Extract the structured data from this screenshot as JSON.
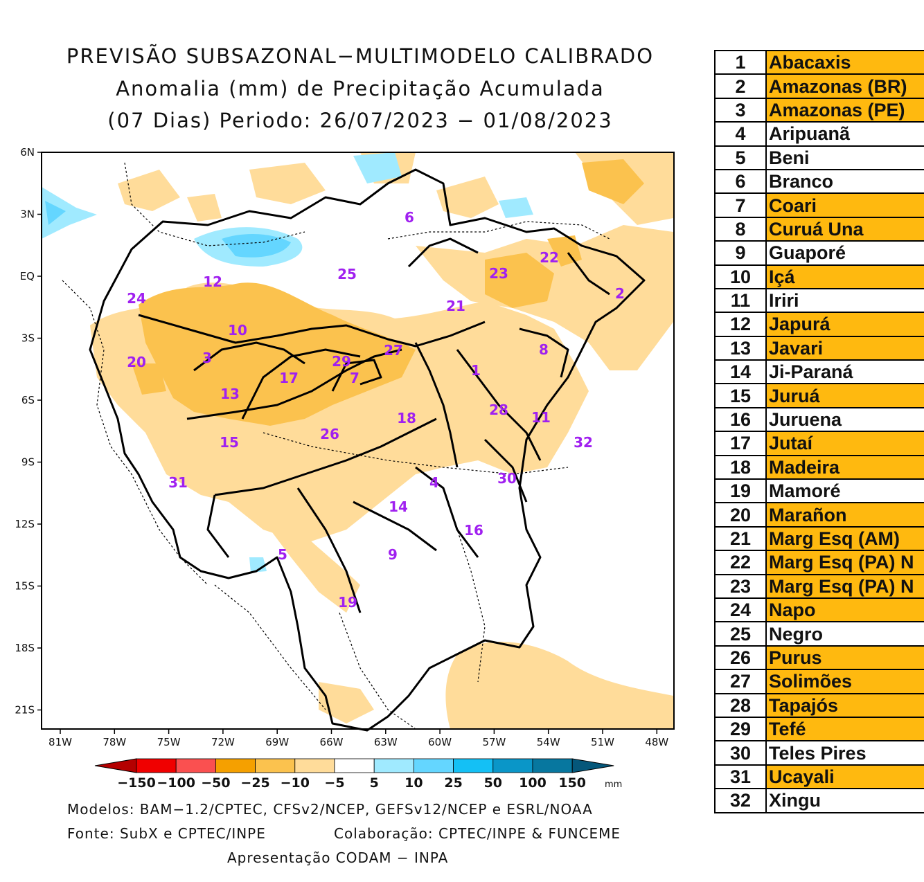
{
  "title": {
    "line1": "PREVISÃO SUBSAZONAL−MULTIMODELO CALIBRADO",
    "line2": "Anomalia (mm) de Precipitação Acumulada",
    "line3": "(07 Dias) Periodo: 26/07/2023 − 01/08/2023"
  },
  "map": {
    "lat_labels": [
      "6N",
      "3N",
      "EQ",
      "3S",
      "6S",
      "9S",
      "12S",
      "15S",
      "18S",
      "21S"
    ],
    "lon_labels": [
      "81W",
      "78W",
      "75W",
      "72W",
      "69W",
      "66W",
      "63W",
      "60W",
      "57W",
      "54W",
      "51W",
      "48W"
    ],
    "basin_numbers": [
      "1",
      "2",
      "3",
      "4",
      "5",
      "6",
      "7",
      "8",
      "9",
      "10",
      "11",
      "12",
      "13",
      "14",
      "15",
      "16",
      "17",
      "18",
      "19",
      "20",
      "21",
      "22",
      "23",
      "24",
      "25",
      "26",
      "27",
      "28",
      "29",
      "30",
      "31",
      "32"
    ],
    "label_color": "#A020F0"
  },
  "colorbar": {
    "ticks": [
      "−150",
      "−100",
      "−50",
      "−25",
      "−10",
      "−5",
      "5",
      "10",
      "25",
      "50",
      "100",
      "150"
    ],
    "unit": "mm",
    "colors": [
      "#B40000",
      "#F00000",
      "#FA5050",
      "#F5A000",
      "#FBC24E",
      "#FFDC9A",
      "#FFFFFF",
      "#A0EAFF",
      "#64D6FF",
      "#14C0F5",
      "#0A96C8",
      "#07779F",
      "#05577A"
    ]
  },
  "credits": {
    "models": "Modelos: BAM−1.2/CPTEC, CFSv2/NCEP, GEFSv12/NCEP e ESRL/NOAA",
    "source": "Fonte: SubX e CPTEC/INPE",
    "collab": "Colaboração: CPTEC/INPE & FUNCEME",
    "presentation": "Apresentação CODAM − INPA"
  },
  "basins": [
    {
      "num": "1",
      "name": "Abacaxis",
      "highlight": true
    },
    {
      "num": "2",
      "name": "Amazonas (BR)",
      "highlight": true
    },
    {
      "num": "3",
      "name": "Amazonas (PE)",
      "highlight": true
    },
    {
      "num": "4",
      "name": "Aripuanã",
      "highlight": false
    },
    {
      "num": "5",
      "name": "Beni",
      "highlight": false
    },
    {
      "num": "6",
      "name": "Branco",
      "highlight": false
    },
    {
      "num": "7",
      "name": "Coari",
      "highlight": true
    },
    {
      "num": "8",
      "name": "Curuá Una",
      "highlight": true
    },
    {
      "num": "9",
      "name": "Guaporé",
      "highlight": false
    },
    {
      "num": "10",
      "name": "Içá",
      "highlight": true
    },
    {
      "num": "11",
      "name": "Iriri",
      "highlight": false
    },
    {
      "num": "12",
      "name": "Japurá",
      "highlight": true
    },
    {
      "num": "13",
      "name": "Javari",
      "highlight": true
    },
    {
      "num": "14",
      "name": "Ji-Paraná",
      "highlight": false
    },
    {
      "num": "15",
      "name": "Juruá",
      "highlight": true
    },
    {
      "num": "16",
      "name": "Juruena",
      "highlight": false
    },
    {
      "num": "17",
      "name": "Jutaí",
      "highlight": true
    },
    {
      "num": "18",
      "name": "Madeira",
      "highlight": true
    },
    {
      "num": "19",
      "name": "Mamoré",
      "highlight": false
    },
    {
      "num": "20",
      "name": "Marañon",
      "highlight": true
    },
    {
      "num": "21",
      "name": "Marg Esq (AM)",
      "highlight": true
    },
    {
      "num": "22",
      "name": "Marg Esq (PA) N",
      "highlight": true
    },
    {
      "num": "23",
      "name": "Marg Esq (PA) N",
      "highlight": true
    },
    {
      "num": "24",
      "name": "Napo",
      "highlight": true
    },
    {
      "num": "25",
      "name": "Negro",
      "highlight": false
    },
    {
      "num": "26",
      "name": "Purus",
      "highlight": true
    },
    {
      "num": "27",
      "name": "Solimões",
      "highlight": true
    },
    {
      "num": "28",
      "name": "Tapajós",
      "highlight": true
    },
    {
      "num": "29",
      "name": "Tefé",
      "highlight": true
    },
    {
      "num": "30",
      "name": "Teles Pires",
      "highlight": false
    },
    {
      "num": "31",
      "name": "Ucayali",
      "highlight": true
    },
    {
      "num": "32",
      "name": "Xingu",
      "highlight": false
    }
  ]
}
